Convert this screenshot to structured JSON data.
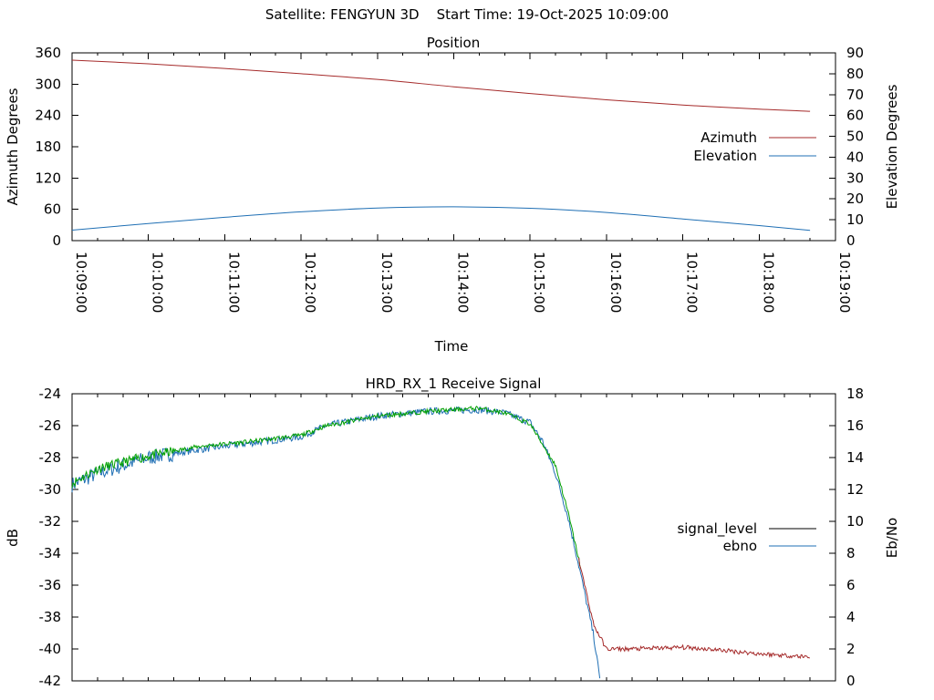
{
  "page_title": "Satellite: FENGYUN 3D    Start Time: 19-Oct-2025 10:09:00",
  "chart_data": [
    {
      "type": "line",
      "title": "Position",
      "xlabel": "Time",
      "ylabel": "Azimuth Degrees",
      "y2label": "Elevation Degrees",
      "x_ticks": [
        "10:09:00",
        "10:10:00",
        "10:11:00",
        "10:12:00",
        "10:13:00",
        "10:14:00",
        "10:15:00",
        "10:16:00",
        "10:17:00",
        "10:18:00",
        "10:19:00"
      ],
      "xlim": [
        "10:09:00",
        "10:19:00"
      ],
      "ylim": [
        0,
        360
      ],
      "y_ticks": [
        "0",
        "60",
        "120",
        "180",
        "240",
        "300",
        "360"
      ],
      "y2lim": [
        0,
        90
      ],
      "y2_ticks": [
        "0",
        "10",
        "20",
        "30",
        "40",
        "50",
        "60",
        "70",
        "80",
        "90"
      ],
      "legend_position": "right",
      "grid": false,
      "series": [
        {
          "name": "Azimuth",
          "axis": "y",
          "color": "#a52a2a",
          "x": [
            "10:09:00",
            "10:10:00",
            "10:11:00",
            "10:12:00",
            "10:13:00",
            "10:14:00",
            "10:15:00",
            "10:16:00",
            "10:17:00",
            "10:18:00",
            "10:18:40"
          ],
          "values": [
            346,
            339,
            330,
            320,
            309,
            295,
            282,
            270,
            260,
            252,
            248
          ]
        },
        {
          "name": "Elevation",
          "axis": "y2",
          "color": "#1f6fb4",
          "x": [
            "10:09:00",
            "10:10:00",
            "10:11:00",
            "10:12:00",
            "10:13:00",
            "10:14:00",
            "10:15:00",
            "10:16:00",
            "10:17:00",
            "10:18:00",
            "10:18:40"
          ],
          "values": [
            5,
            8.2,
            11.2,
            13.8,
            15.6,
            16.2,
            15.5,
            13.5,
            10.4,
            7.2,
            4.9
          ]
        }
      ]
    },
    {
      "type": "line",
      "title": "HRD_RX_1 Receive Signal",
      "ylabel": "dB",
      "y2label": "Eb/No",
      "ylim": [
        -42,
        -24
      ],
      "y_ticks": [
        "-24",
        "-26",
        "-28",
        "-30",
        "-32",
        "-34",
        "-36",
        "-38",
        "-40",
        "-42"
      ],
      "y2lim": [
        0,
        18
      ],
      "y2_ticks": [
        "0",
        "2",
        "4",
        "6",
        "8",
        "10",
        "12",
        "14",
        "16",
        "18"
      ],
      "xlim": [
        "10:09:00",
        "10:19:00"
      ],
      "minor_ticks_every": "0:00:20",
      "legend_position": "right",
      "grid": false,
      "legend": [
        {
          "name": "signal_level",
          "color": "#000000"
        },
        {
          "name": "ebno",
          "color": "#1f6fb4"
        }
      ],
      "series": [
        {
          "name": "signal_level",
          "axis": "y",
          "color": "#a52a2a",
          "above_-30_color": "#00a000",
          "x": [
            "10:09:00",
            "10:09:20",
            "10:10:00",
            "10:10:40",
            "10:11:20",
            "10:12:00",
            "10:12:20",
            "10:13:00",
            "10:13:40",
            "10:14:20",
            "10:14:40",
            "10:15:00",
            "10:15:20",
            "10:15:30",
            "10:15:40",
            "10:15:50",
            "10:16:00",
            "10:16:20",
            "10:17:00",
            "10:17:20",
            "10:18:00",
            "10:18:40"
          ],
          "values": [
            -29.6,
            -28.7,
            -27.9,
            -27.3,
            -27.0,
            -26.6,
            -26.0,
            -25.4,
            -25.1,
            -24.9,
            -25.2,
            -25.9,
            -28.5,
            -31.5,
            -35.0,
            -38.5,
            -40.0,
            -40.0,
            -39.9,
            -40.0,
            -40.3,
            -40.5
          ]
        },
        {
          "name": "ebno",
          "axis": "y2",
          "color": "#1f6fb4",
          "x": [
            "10:09:00",
            "10:09:20",
            "10:10:00",
            "10:10:40",
            "10:11:20",
            "10:12:00",
            "10:12:20",
            "10:13:00",
            "10:13:40",
            "10:14:20",
            "10:14:40",
            "10:15:00",
            "10:15:10",
            "10:15:20",
            "10:15:30",
            "10:15:40",
            "10:15:50",
            "10:15:55"
          ],
          "values": [
            12.3,
            13.0,
            14.0,
            14.5,
            14.9,
            15.3,
            16.0,
            16.6,
            16.9,
            17.0,
            16.8,
            16.2,
            15.0,
            13.0,
            10.2,
            6.6,
            2.8,
            0
          ]
        }
      ]
    }
  ]
}
